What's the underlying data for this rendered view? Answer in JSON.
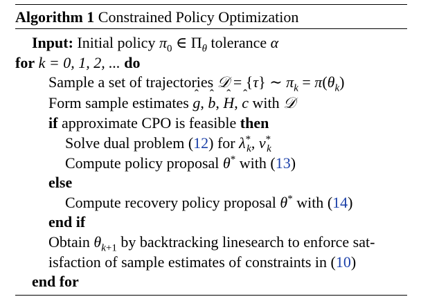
{
  "caption": {
    "label": "Algorithm 1",
    "title": "Constrained Policy Optimization"
  },
  "lines": {
    "input_kw": "Input:",
    "input_text": "Initial policy",
    "input_tol": "tolerance",
    "for_kw": "for",
    "for_expr": "k = 0, 1, 2, ...",
    "do_kw": "do",
    "sample_text": "Sample a set of trajectories",
    "form_text": "Form sample estimates",
    "form_with": "with",
    "if_kw": "if",
    "if_text": "approximate CPO is feasible",
    "then_kw": "then",
    "solve_text": "Solve dual problem",
    "solve_ref": "12",
    "solve_for": "for",
    "compute_text": "Compute policy proposal",
    "compute_with": "with",
    "compute_ref": "13",
    "else_kw": "else",
    "recovery_text": "Compute recovery policy proposal",
    "recovery_with": "with",
    "recovery_ref": "14",
    "endif_kw": "end if",
    "obtain_text_a": "Obtain",
    "obtain_text_b": "by backtracking linesearch to enforce sat-",
    "obtain_text_c": "isfaction of sample estimates of constraints in",
    "obtain_ref": "10",
    "endfor_kw": "end for"
  }
}
